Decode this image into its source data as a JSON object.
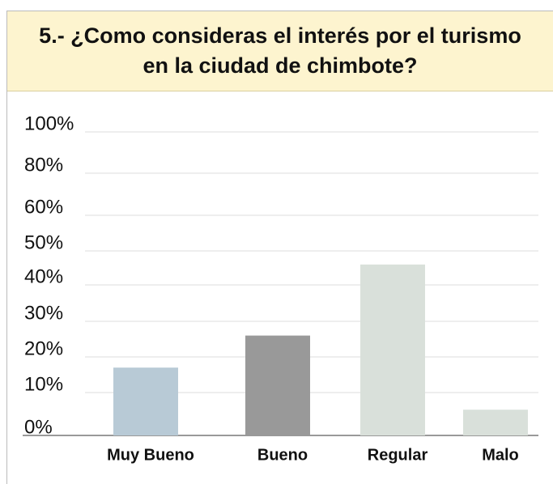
{
  "chart_data": {
    "type": "bar",
    "title": "5.- ¿Como consideras el interés por el turismo en la ciudad de chimbote?",
    "categories": [
      "Muy Bueno",
      "Bueno",
      "Regular",
      "Malo"
    ],
    "values": [
      17,
      26,
      46,
      6
    ],
    "colors": [
      "#b8cad6",
      "#999999",
      "#d9e0da",
      "#d9e0da"
    ],
    "ylim": [
      0,
      100
    ],
    "yticks": [
      {
        "value": 0,
        "label": "0%"
      },
      {
        "value": 10,
        "label": "10%"
      },
      {
        "value": 20,
        "label": "20%"
      },
      {
        "value": 30,
        "label": "30%"
      },
      {
        "value": 40,
        "label": "40%"
      },
      {
        "value": 50,
        "label": "50%"
      },
      {
        "value": 60,
        "label": "60%"
      },
      {
        "value": 80,
        "label": "80%"
      },
      {
        "value": 100,
        "label": "100%"
      }
    ],
    "grid": true
  }
}
